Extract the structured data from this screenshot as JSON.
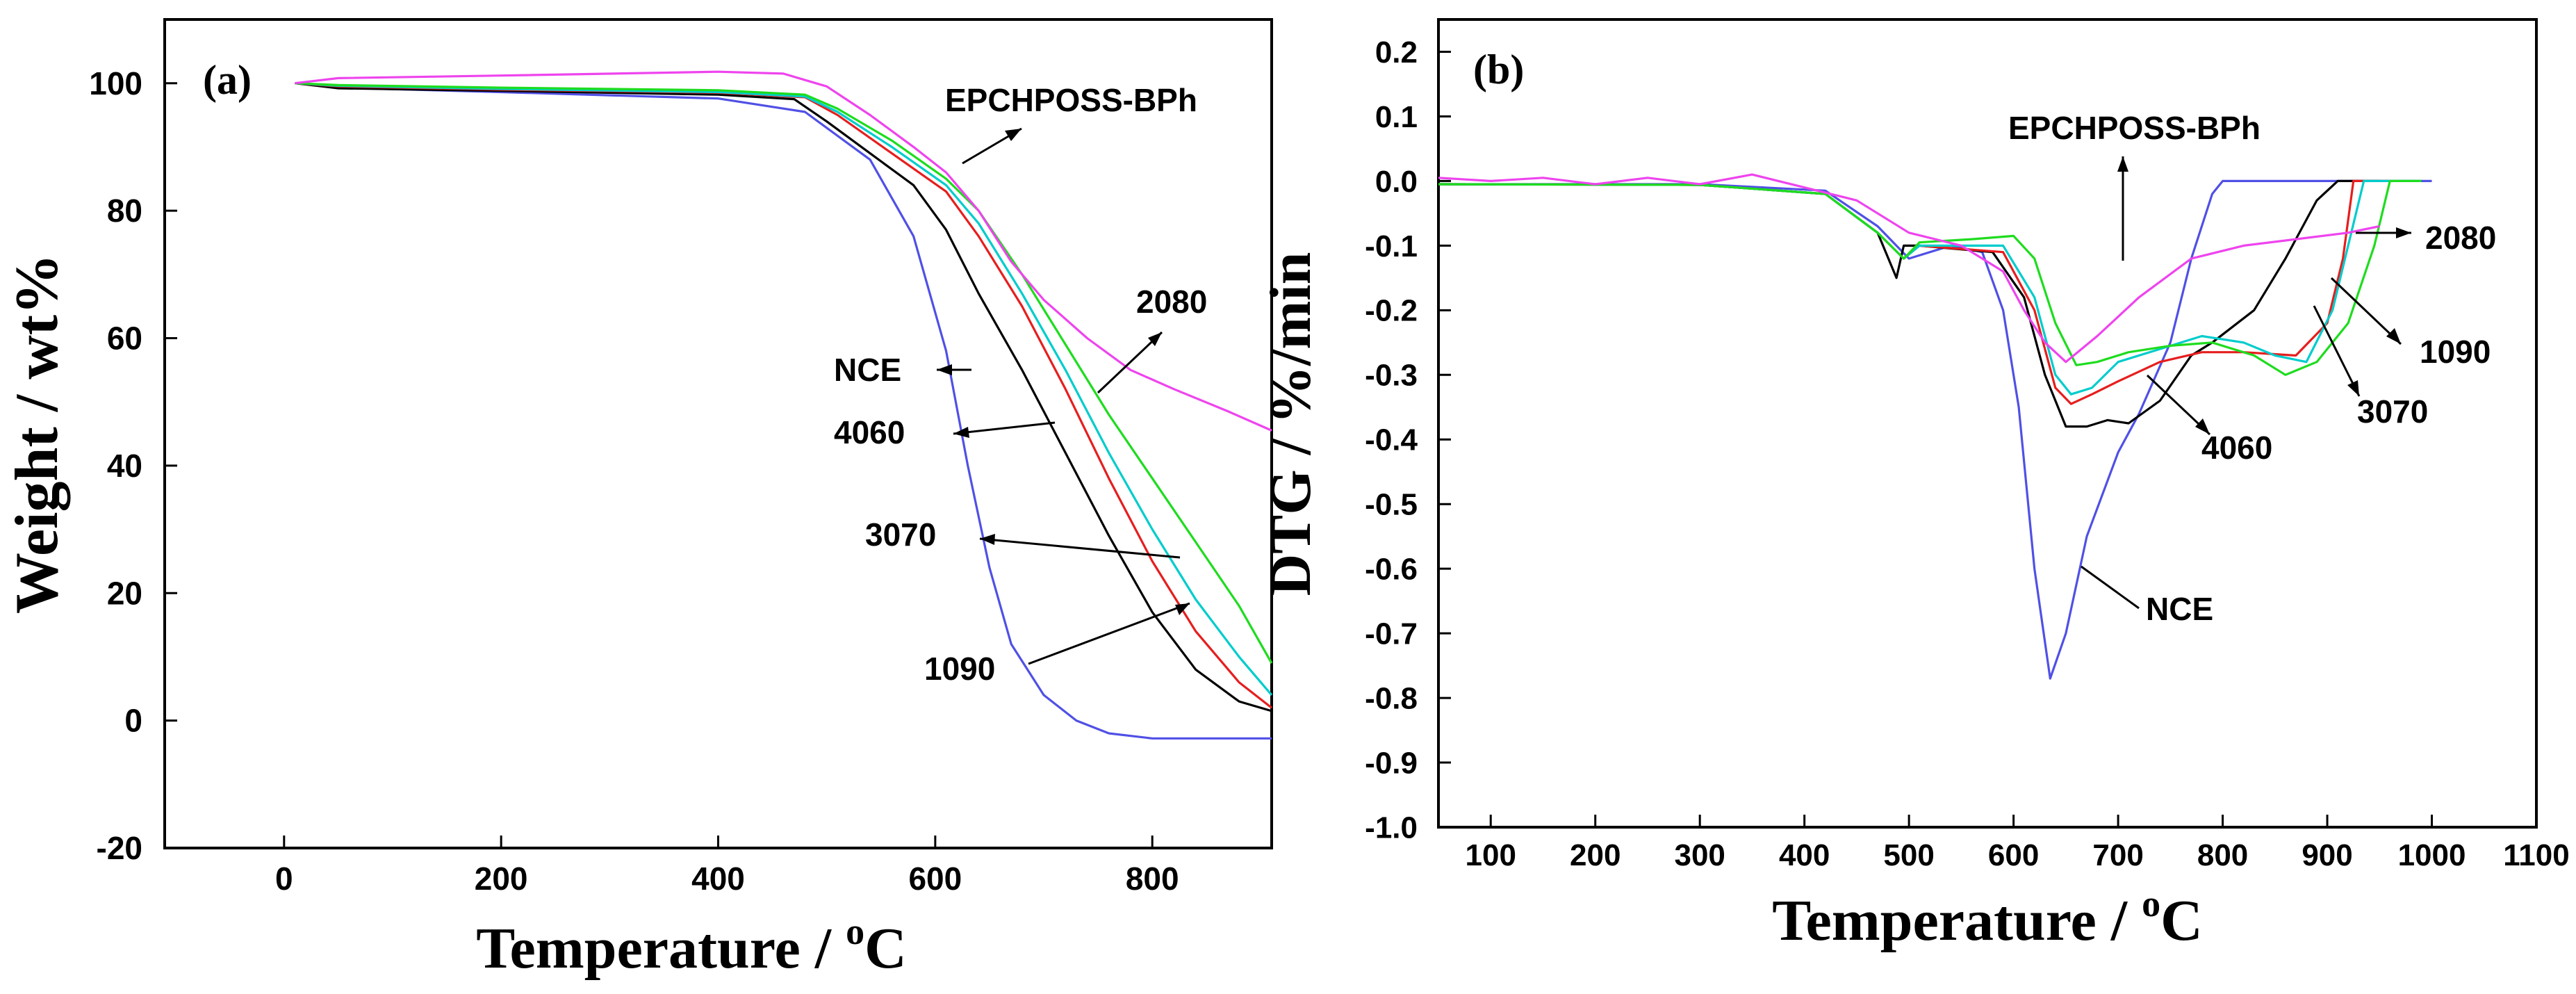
{
  "chart_data": [
    {
      "panel_label": "(a)",
      "type": "line",
      "xlabel": "Temperature / ",
      "xlabel_sup": "o",
      "xlabel_unit": "C",
      "ylabel": "Weight / wt%",
      "xlim": [
        -110,
        910
      ],
      "ylim": [
        -20,
        110
      ],
      "xticks": [
        0,
        200,
        400,
        600,
        800
      ],
      "yticks": [
        -20,
        0,
        20,
        40,
        60,
        80,
        100
      ],
      "series": [
        {
          "name": "NCE",
          "color": "#5050e6",
          "points": [
            [
              10,
              100
            ],
            [
              50,
              99.3
            ],
            [
              200,
              98.6
            ],
            [
              400,
              97.6
            ],
            [
              480,
              95.5
            ],
            [
              540,
              88
            ],
            [
              580,
              76
            ],
            [
              610,
              58
            ],
            [
              630,
              40
            ],
            [
              650,
              24
            ],
            [
              670,
              12
            ],
            [
              700,
              4
            ],
            [
              730,
              0
            ],
            [
              760,
              -2
            ],
            [
              800,
              -2.8
            ],
            [
              910,
              -2.8
            ]
          ]
        },
        {
          "name": "4060",
          "color": "#000000",
          "points": [
            [
              10,
              100
            ],
            [
              50,
              99.2
            ],
            [
              200,
              98.8
            ],
            [
              400,
              98.2
            ],
            [
              470,
              97.5
            ],
            [
              500,
              94
            ],
            [
              540,
              89
            ],
            [
              580,
              84
            ],
            [
              610,
              77
            ],
            [
              640,
              67
            ],
            [
              680,
              55
            ],
            [
              720,
              42
            ],
            [
              760,
              29
            ],
            [
              800,
              17
            ],
            [
              840,
              8
            ],
            [
              880,
              3
            ],
            [
              910,
              1.5
            ]
          ]
        },
        {
          "name": "3070",
          "color": "#e61e1e",
          "points": [
            [
              10,
              100
            ],
            [
              50,
              99.5
            ],
            [
              200,
              99
            ],
            [
              400,
              98.5
            ],
            [
              480,
              97.8
            ],
            [
              510,
              95
            ],
            [
              560,
              89
            ],
            [
              610,
              83
            ],
            [
              640,
              76
            ],
            [
              680,
              65
            ],
            [
              720,
              52
            ],
            [
              760,
              38
            ],
            [
              800,
              25
            ],
            [
              840,
              14
            ],
            [
              880,
              6
            ],
            [
              910,
              2
            ]
          ]
        },
        {
          "name": "1090",
          "color": "#00cccc",
          "points": [
            [
              10,
              100
            ],
            [
              50,
              99.6
            ],
            [
              200,
              99.1
            ],
            [
              400,
              98.6
            ],
            [
              480,
              97.9
            ],
            [
              510,
              95.5
            ],
            [
              560,
              90
            ],
            [
              610,
              84
            ],
            [
              640,
              78
            ],
            [
              680,
              67
            ],
            [
              720,
              55
            ],
            [
              760,
              42
            ],
            [
              800,
              30
            ],
            [
              840,
              19
            ],
            [
              880,
              10
            ],
            [
              910,
              4
            ]
          ]
        },
        {
          "name": "2080",
          "color": "#1edc1e",
          "points": [
            [
              10,
              100
            ],
            [
              50,
              99.7
            ],
            [
              200,
              99.3
            ],
            [
              400,
              98.9
            ],
            [
              480,
              98.2
            ],
            [
              510,
              96
            ],
            [
              560,
              91
            ],
            [
              610,
              85
            ],
            [
              640,
              80
            ],
            [
              680,
              70
            ],
            [
              720,
              59
            ],
            [
              760,
              48
            ],
            [
              800,
              38
            ],
            [
              840,
              28
            ],
            [
              880,
              18
            ],
            [
              910,
              9
            ]
          ]
        },
        {
          "name": "EPCHPOSS-BPh",
          "color": "#ee44ee",
          "points": [
            [
              10,
              100
            ],
            [
              50,
              100.8
            ],
            [
              200,
              101.2
            ],
            [
              400,
              101.8
            ],
            [
              460,
              101.5
            ],
            [
              500,
              99.5
            ],
            [
              540,
              95
            ],
            [
              580,
              90
            ],
            [
              610,
              86
            ],
            [
              640,
              80
            ],
            [
              670,
              72
            ],
            [
              700,
              66
            ],
            [
              740,
              60
            ],
            [
              780,
              55
            ],
            [
              820,
              52
            ],
            [
              870,
              48.5
            ],
            [
              910,
              45.5
            ]
          ]
        }
      ],
      "annotations": [
        {
          "text": "EPCHPOSS-BPh",
          "target": "EPCHPOSS-BPh"
        },
        {
          "text": "2080",
          "target": "2080"
        },
        {
          "text": "NCE",
          "target": "NCE"
        },
        {
          "text": "4060",
          "target": "4060"
        },
        {
          "text": "3070",
          "target": "3070"
        },
        {
          "text": "1090",
          "target": "1090"
        }
      ]
    },
    {
      "panel_label": "(b)",
      "type": "line",
      "xlabel": "Temperature / ",
      "xlabel_sup": "o",
      "xlabel_unit": "C",
      "ylabel": "DTG / %/min",
      "xlim": [
        50,
        1100
      ],
      "ylim": [
        -1.0,
        0.25
      ],
      "xticks": [
        100,
        200,
        300,
        400,
        500,
        600,
        700,
        800,
        900,
        1000,
        1100
      ],
      "yticks": [
        -1.0,
        -0.9,
        -0.8,
        -0.7,
        -0.6,
        -0.5,
        -0.4,
        -0.3,
        -0.2,
        -0.1,
        0.0,
        0.1,
        0.2
      ],
      "ytick_labels": [
        "-1.0",
        "-0.9",
        "-0.8",
        "-0.7",
        "-0.6",
        "-0.5",
        "-0.4",
        "-0.3",
        "-0.2",
        "-0.1",
        "0.0",
        "0.1",
        "0.2"
      ],
      "series": [
        {
          "name": "NCE",
          "color": "#5050e6",
          "points": [
            [
              50,
              -0.005
            ],
            [
              300,
              -0.005
            ],
            [
              420,
              -0.015
            ],
            [
              470,
              -0.07
            ],
            [
              500,
              -0.12
            ],
            [
              540,
              -0.1
            ],
            [
              570,
              -0.11
            ],
            [
              590,
              -0.2
            ],
            [
              605,
              -0.35
            ],
            [
              620,
              -0.6
            ],
            [
              635,
              -0.77
            ],
            [
              650,
              -0.7
            ],
            [
              670,
              -0.55
            ],
            [
              700,
              -0.42
            ],
            [
              720,
              -0.36
            ],
            [
              750,
              -0.25
            ],
            [
              770,
              -0.12
            ],
            [
              790,
              -0.02
            ],
            [
              800,
              0.0
            ],
            [
              1000,
              0.0
            ]
          ]
        },
        {
          "name": "4060",
          "color": "#000000",
          "points": [
            [
              50,
              -0.005
            ],
            [
              300,
              -0.006
            ],
            [
              420,
              -0.02
            ],
            [
              470,
              -0.08
            ],
            [
              488,
              -0.15
            ],
            [
              495,
              -0.1
            ],
            [
              510,
              -0.1
            ],
            [
              580,
              -0.11
            ],
            [
              610,
              -0.18
            ],
            [
              630,
              -0.3
            ],
            [
              650,
              -0.38
            ],
            [
              670,
              -0.38
            ],
            [
              690,
              -0.37
            ],
            [
              710,
              -0.375
            ],
            [
              740,
              -0.34
            ],
            [
              770,
              -0.27
            ],
            [
              790,
              -0.25
            ],
            [
              830,
              -0.2
            ],
            [
              860,
              -0.12
            ],
            [
              890,
              -0.03
            ],
            [
              910,
              0.0
            ],
            [
              950,
              0.0
            ]
          ]
        },
        {
          "name": "3070",
          "color": "#e61e1e",
          "points": [
            [
              50,
              -0.005
            ],
            [
              300,
              -0.006
            ],
            [
              420,
              -0.02
            ],
            [
              470,
              -0.08
            ],
            [
              495,
              -0.12
            ],
            [
              510,
              -0.1
            ],
            [
              590,
              -0.11
            ],
            [
              620,
              -0.2
            ],
            [
              640,
              -0.32
            ],
            [
              655,
              -0.345
            ],
            [
              675,
              -0.33
            ],
            [
              700,
              -0.31
            ],
            [
              740,
              -0.28
            ],
            [
              780,
              -0.265
            ],
            [
              820,
              -0.265
            ],
            [
              870,
              -0.27
            ],
            [
              900,
              -0.22
            ],
            [
              915,
              -0.12
            ],
            [
              925,
              0.0
            ],
            [
              960,
              0.0
            ]
          ]
        },
        {
          "name": "1090",
          "color": "#00cccc",
          "points": [
            [
              50,
              -0.005
            ],
            [
              300,
              -0.006
            ],
            [
              420,
              -0.02
            ],
            [
              470,
              -0.08
            ],
            [
              495,
              -0.12
            ],
            [
              510,
              -0.1
            ],
            [
              590,
              -0.1
            ],
            [
              620,
              -0.18
            ],
            [
              640,
              -0.3
            ],
            [
              655,
              -0.33
            ],
            [
              675,
              -0.32
            ],
            [
              700,
              -0.28
            ],
            [
              740,
              -0.26
            ],
            [
              780,
              -0.24
            ],
            [
              820,
              -0.25
            ],
            [
              850,
              -0.27
            ],
            [
              880,
              -0.28
            ],
            [
              905,
              -0.2
            ],
            [
              920,
              -0.1
            ],
            [
              935,
              0.0
            ],
            [
              990,
              0.0
            ]
          ]
        },
        {
          "name": "2080",
          "color": "#1edc1e",
          "points": [
            [
              50,
              -0.005
            ],
            [
              300,
              -0.006
            ],
            [
              420,
              -0.02
            ],
            [
              470,
              -0.08
            ],
            [
              495,
              -0.12
            ],
            [
              510,
              -0.095
            ],
            [
              560,
              -0.09
            ],
            [
              600,
              -0.085
            ],
            [
              620,
              -0.12
            ],
            [
              640,
              -0.22
            ],
            [
              660,
              -0.285
            ],
            [
              680,
              -0.28
            ],
            [
              710,
              -0.265
            ],
            [
              750,
              -0.255
            ],
            [
              790,
              -0.25
            ],
            [
              830,
              -0.27
            ],
            [
              860,
              -0.3
            ],
            [
              890,
              -0.28
            ],
            [
              920,
              -0.22
            ],
            [
              945,
              -0.1
            ],
            [
              960,
              0.0
            ],
            [
              990,
              0.0
            ]
          ]
        },
        {
          "name": "EPCHPOSS-BPh",
          "color": "#ee44ee",
          "points": [
            [
              50,
              0.005
            ],
            [
              100,
              0.0
            ],
            [
              150,
              0.005
            ],
            [
              200,
              -0.005
            ],
            [
              250,
              0.005
            ],
            [
              300,
              -0.005
            ],
            [
              350,
              0.01
            ],
            [
              400,
              -0.01
            ],
            [
              450,
              -0.03
            ],
            [
              500,
              -0.08
            ],
            [
              550,
              -0.1
            ],
            [
              590,
              -0.14
            ],
            [
              610,
              -0.2
            ],
            [
              630,
              -0.25
            ],
            [
              650,
              -0.28
            ],
            [
              680,
              -0.24
            ],
            [
              720,
              -0.18
            ],
            [
              770,
              -0.12
            ],
            [
              820,
              -0.1
            ],
            [
              870,
              -0.09
            ],
            [
              920,
              -0.08
            ],
            [
              950,
              -0.07
            ]
          ]
        }
      ],
      "annotations": [
        {
          "text": "EPCHPOSS-BPh",
          "target": "EPCHPOSS-BPh"
        },
        {
          "text": "2080",
          "target": "2080"
        },
        {
          "text": "1090",
          "target": "1090"
        },
        {
          "text": "3070",
          "target": "3070"
        },
        {
          "text": "4060",
          "target": "4060"
        },
        {
          "text": "NCE",
          "target": "NCE"
        }
      ]
    }
  ]
}
